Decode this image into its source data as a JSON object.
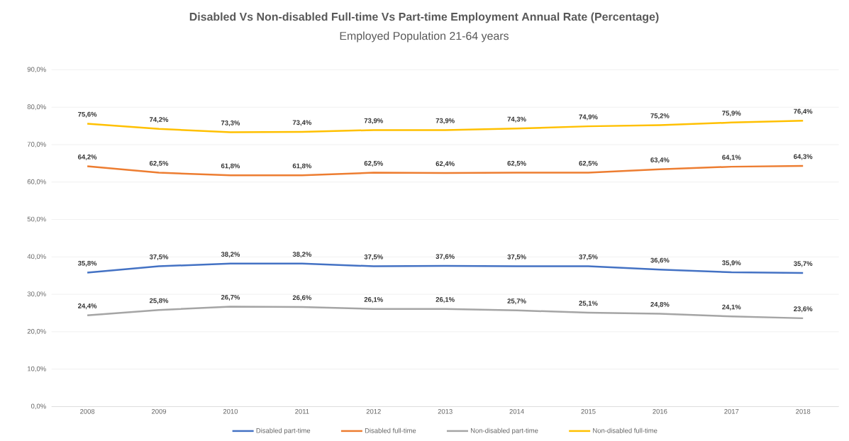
{
  "chart_data": {
    "type": "line",
    "title": "Disabled Vs Non-disabled Full-time Vs Part-time Employment Annual Rate (Percentage)",
    "subtitle": "Employed Population 21-64 years",
    "categories": [
      "2008",
      "2009",
      "2010",
      "2011",
      "2012",
      "2013",
      "2014",
      "2015",
      "2016",
      "2017",
      "2018"
    ],
    "series": [
      {
        "name": "Disabled part-time",
        "color": "#4472c4",
        "values": [
          35.8,
          37.5,
          38.2,
          38.2,
          37.5,
          37.6,
          37.5,
          37.5,
          36.6,
          35.9,
          35.7
        ],
        "value_labels": [
          "35,8%",
          "37,5%",
          "38,2%",
          "38,2%",
          "37,5%",
          "37,6%",
          "37,5%",
          "37,5%",
          "36,6%",
          "35,9%",
          "35,7%"
        ]
      },
      {
        "name": "Disabled full-time",
        "color": "#ed7d31",
        "values": [
          64.2,
          62.5,
          61.8,
          61.8,
          62.5,
          62.4,
          62.5,
          62.5,
          63.4,
          64.1,
          64.3
        ],
        "value_labels": [
          "64,2%",
          "62,5%",
          "61,8%",
          "61,8%",
          "62,5%",
          "62,4%",
          "62,5%",
          "62,5%",
          "63,4%",
          "64,1%",
          "64,3%"
        ]
      },
      {
        "name": "Non-disabled part-time",
        "color": "#a5a5a5",
        "values": [
          24.4,
          25.8,
          26.7,
          26.6,
          26.1,
          26.1,
          25.7,
          25.1,
          24.8,
          24.1,
          23.6
        ],
        "value_labels": [
          "24,4%",
          "25,8%",
          "26,7%",
          "26,6%",
          "26,1%",
          "26,1%",
          "25,7%",
          "25,1%",
          "24,8%",
          "24,1%",
          "23,6%"
        ]
      },
      {
        "name": "Non-disabled full-time",
        "color": "#ffc000",
        "values": [
          75.6,
          74.2,
          73.3,
          73.4,
          73.9,
          73.9,
          74.3,
          74.9,
          75.2,
          75.9,
          76.4
        ],
        "value_labels": [
          "75,6%",
          "74,2%",
          "73,3%",
          "73,4%",
          "73,9%",
          "73,9%",
          "74,3%",
          "74,9%",
          "75,2%",
          "75,9%",
          "76,4%"
        ]
      }
    ],
    "ylim": [
      0,
      90
    ],
    "yticks": [
      {
        "value": 0,
        "label": "0,0%"
      },
      {
        "value": 10,
        "label": "10,0%"
      },
      {
        "value": 20,
        "label": "20,0%"
      },
      {
        "value": 30,
        "label": "30,0%"
      },
      {
        "value": 40,
        "label": "40,0%"
      },
      {
        "value": 50,
        "label": "50,0%"
      },
      {
        "value": 60,
        "label": "60,0%"
      },
      {
        "value": 70,
        "label": "70,0%"
      },
      {
        "value": 80,
        "label": "80,0%"
      },
      {
        "value": 90,
        "label": "90,0%"
      }
    ],
    "grid": "y",
    "legend": "bottom",
    "marker": "none",
    "line_style": "solid"
  }
}
